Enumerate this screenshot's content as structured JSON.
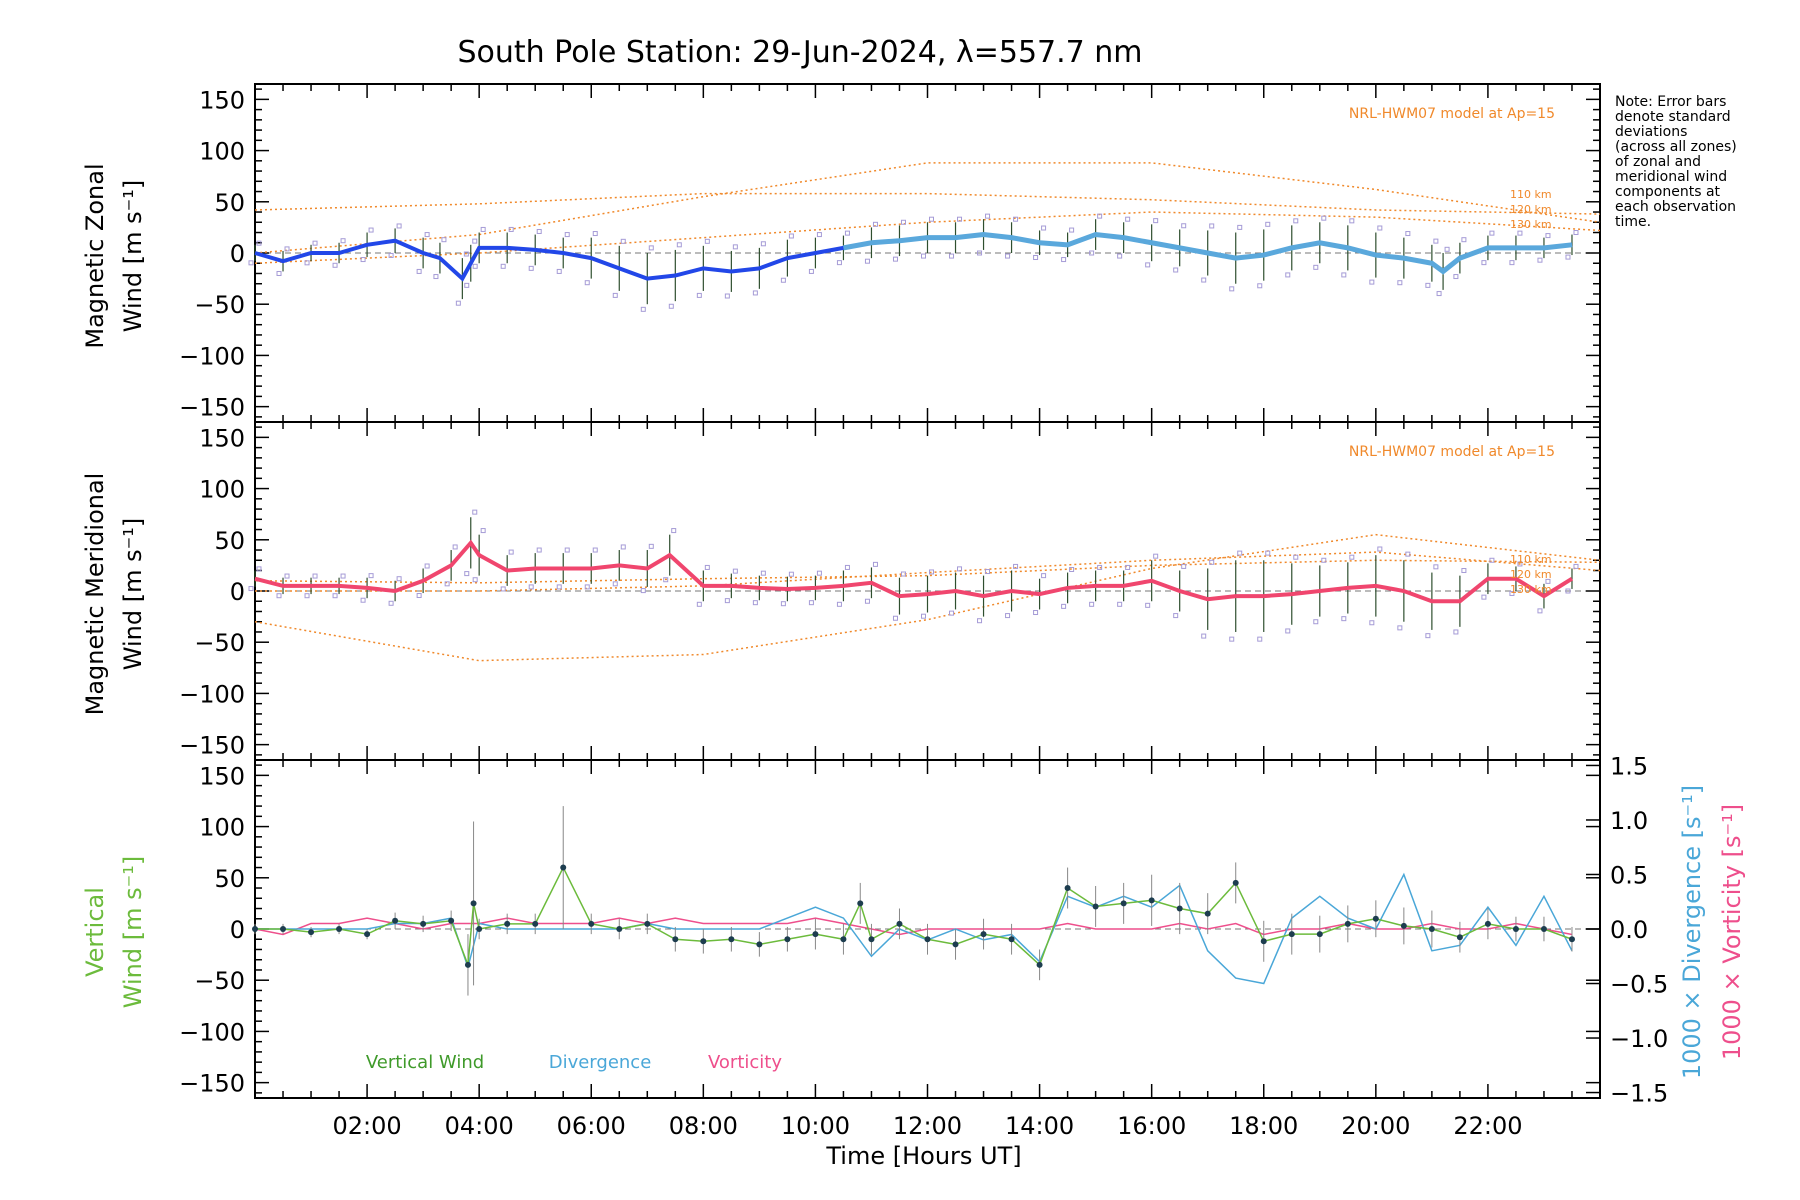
{
  "title": "South Pole Station: 29-Jun-2024, λ=557.7 nm",
  "note": [
    "Note: Error bars",
    "denote standard",
    "deviations",
    "(across all zones)",
    "of zonal and",
    "meridional wind",
    "components at",
    "each observation",
    "time."
  ],
  "model_label": "NRL-HWM07 model at Ap=15",
  "altitude_labels": [
    "110 km",
    "120 km",
    "130 km"
  ],
  "xlabel": "Time [Hours UT]",
  "xticks": [
    "02:00",
    "04:00",
    "06:00",
    "08:00",
    "10:00",
    "12:00",
    "14:00",
    "16:00",
    "18:00",
    "20:00",
    "22:00"
  ],
  "yticks": [
    "150",
    "100",
    "50",
    "0",
    "−50",
    "−100",
    "−150"
  ],
  "rticks": [
    "1.5",
    "1.0",
    "0.5",
    "0.0",
    "−0.5",
    "−1.0",
    "−1.5"
  ],
  "colors": {
    "zonal": "#2247e8",
    "zonal_light": "#5aa8dc",
    "meridional": "#f0466e",
    "vertical": "#6cbb3c",
    "divergence": "#4aa7d8",
    "vorticity": "#ee4f8c",
    "model": "#f0892b",
    "zones": "#a59bd6"
  },
  "chart_data": [
    {
      "type": "line",
      "panel": "zonal",
      "ylabel_line1": "Magnetic Zonal",
      "ylabel_line2": "Wind [m s⁻¹]",
      "ylim": [
        -165,
        165
      ],
      "xlim": [
        0,
        24
      ],
      "series": [
        {
          "name": "Zonal wind",
          "x": [
            0,
            0.5,
            1,
            1.5,
            2,
            2.5,
            3,
            3.3,
            3.7,
            3.85,
            4,
            4.5,
            5,
            5.5,
            6,
            6.5,
            7,
            7.5,
            8,
            8.5,
            9,
            9.5,
            10,
            10.5,
            11,
            11.5,
            12,
            12.5,
            13,
            13.5,
            14,
            14.5,
            15,
            15.5,
            16,
            16.5,
            17,
            17.5,
            18,
            18.5,
            19,
            19.5,
            20,
            20.5,
            21,
            21.2,
            21.5,
            22,
            22.5,
            23,
            23.5
          ],
          "y": [
            0,
            -8,
            0,
            0,
            8,
            12,
            0,
            -5,
            -25,
            -10,
            5,
            5,
            3,
            0,
            -5,
            -15,
            -25,
            -22,
            -15,
            -18,
            -15,
            -5,
            0,
            5,
            10,
            12,
            15,
            15,
            18,
            15,
            10,
            8,
            18,
            15,
            10,
            5,
            0,
            -5,
            -2,
            5,
            10,
            5,
            -2,
            -5,
            -10,
            -18,
            -5,
            5,
            5,
            5,
            8
          ],
          "err": [
            8,
            10,
            8,
            10,
            12,
            12,
            15,
            15,
            20,
            18,
            15,
            15,
            15,
            15,
            20,
            22,
            25,
            25,
            22,
            20,
            20,
            18,
            15,
            12,
            15,
            15,
            15,
            15,
            15,
            15,
            12,
            12,
            15,
            15,
            18,
            18,
            22,
            25,
            25,
            22,
            20,
            22,
            22,
            20,
            18,
            18,
            15,
            12,
            12,
            10,
            10
          ]
        },
        {
          "name": "NRL-HWM07 110 km",
          "x": [
            0,
            4,
            8,
            12,
            16,
            20,
            24
          ],
          "y": [
            42,
            48,
            58,
            58,
            52,
            42,
            38
          ]
        },
        {
          "name": "NRL-HWM07 120 km",
          "x": [
            0,
            4,
            8,
            12,
            16,
            20,
            24
          ],
          "y": [
            0,
            18,
            55,
            88,
            88,
            62,
            30
          ]
        },
        {
          "name": "NRL-HWM07 130 km",
          "x": [
            0,
            4,
            8,
            12,
            16,
            20,
            24
          ],
          "y": [
            -10,
            0,
            15,
            30,
            40,
            35,
            22
          ]
        }
      ]
    },
    {
      "type": "line",
      "panel": "meridional",
      "ylabel_line1": "Magnetic Meridional",
      "ylabel_line2": "Wind [m s⁻¹]",
      "ylim": [
        -165,
        165
      ],
      "xlim": [
        0,
        24
      ],
      "series": [
        {
          "name": "Meridional wind",
          "x": [
            0,
            0.5,
            1,
            1.5,
            2,
            2.5,
            3,
            3.5,
            3.85,
            4,
            4.5,
            5,
            5.5,
            6,
            6.5,
            7,
            7.4,
            8,
            8.5,
            9,
            9.5,
            10,
            10.5,
            11,
            11.5,
            12,
            12.5,
            13,
            13.5,
            14,
            14.5,
            15,
            15.5,
            16,
            16.5,
            17,
            17.5,
            18,
            18.5,
            19,
            19.5,
            20,
            20.5,
            21,
            21.5,
            22,
            22.5,
            23,
            23.5
          ],
          "y": [
            12,
            5,
            5,
            5,
            3,
            0,
            10,
            25,
            47,
            35,
            20,
            22,
            22,
            22,
            25,
            22,
            35,
            5,
            5,
            3,
            2,
            3,
            5,
            8,
            -5,
            -3,
            0,
            -5,
            0,
            -3,
            3,
            5,
            5,
            10,
            0,
            -8,
            -5,
            -5,
            -3,
            0,
            3,
            5,
            0,
            -10,
            -10,
            12,
            12,
            -5,
            12
          ],
          "err": [
            8,
            8,
            8,
            8,
            10,
            10,
            12,
            15,
            25,
            20,
            15,
            15,
            15,
            15,
            15,
            18,
            20,
            15,
            12,
            12,
            12,
            12,
            15,
            15,
            18,
            18,
            18,
            20,
            20,
            15,
            15,
            15,
            15,
            20,
            20,
            30,
            35,
            35,
            30,
            25,
            25,
            30,
            30,
            28,
            25,
            15,
            12,
            12,
            10
          ]
        },
        {
          "name": "NRL-HWM07 110 km",
          "x": [
            0,
            4,
            8,
            12,
            16,
            20,
            24
          ],
          "y": [
            10,
            8,
            12,
            15,
            25,
            30,
            28
          ]
        },
        {
          "name": "NRL-HWM07 120 km",
          "x": [
            0,
            4,
            8,
            12,
            16,
            20,
            24
          ],
          "y": [
            -30,
            -68,
            -62,
            -28,
            22,
            55,
            30
          ]
        },
        {
          "name": "NRL-HWM07 130 km",
          "x": [
            0,
            4,
            8,
            12,
            16,
            20,
            24
          ],
          "y": [
            0,
            0,
            5,
            18,
            30,
            38,
            20
          ]
        }
      ]
    },
    {
      "type": "line",
      "panel": "vertical",
      "ylabel_line1": "Vertical",
      "ylabel_line2": "Wind [m s⁻¹]",
      "ylabel_right1": "1000 × Divergence [s⁻¹]",
      "ylabel_right2": "1000 × Vorticity [s⁻¹]",
      "ylim": [
        -165,
        165
      ],
      "y2lim": [
        -1.55,
        1.55
      ],
      "xlim": [
        0,
        24
      ],
      "legend": [
        "Vertical Wind",
        "Divergence",
        "Vorticity"
      ],
      "series": [
        {
          "name": "Vertical Wind",
          "x": [
            0,
            0.5,
            1,
            1.5,
            2,
            2.5,
            3,
            3.5,
            3.8,
            3.9,
            4,
            4.5,
            5,
            5.5,
            6,
            6.5,
            7,
            7.5,
            8,
            8.5,
            9,
            9.5,
            10,
            10.5,
            10.8,
            11,
            11.5,
            12,
            12.5,
            13,
            13.5,
            14,
            14.5,
            15,
            15.5,
            16,
            16.5,
            17,
            17.5,
            18,
            18.5,
            19,
            19.5,
            20,
            20.5,
            21,
            21.5,
            22,
            22.5,
            23,
            23.5
          ],
          "y": [
            0,
            0,
            -3,
            0,
            -5,
            8,
            5,
            8,
            -35,
            25,
            0,
            5,
            5,
            60,
            5,
            0,
            5,
            -10,
            -12,
            -10,
            -15,
            -10,
            -5,
            -10,
            25,
            -10,
            5,
            -10,
            -15,
            -5,
            -10,
            -35,
            40,
            22,
            25,
            28,
            20,
            15,
            45,
            -12,
            -5,
            -5,
            5,
            10,
            3,
            0,
            -8,
            5,
            0,
            0,
            -10
          ],
          "err": [
            5,
            5,
            5,
            5,
            5,
            8,
            8,
            10,
            30,
            80,
            10,
            10,
            10,
            60,
            10,
            10,
            10,
            12,
            12,
            12,
            12,
            12,
            15,
            15,
            20,
            15,
            15,
            15,
            15,
            15,
            15,
            15,
            20,
            20,
            20,
            25,
            25,
            20,
            20,
            20,
            20,
            18,
            18,
            18,
            18,
            18,
            15,
            15,
            12,
            12,
            12
          ]
        },
        {
          "name": "Divergence",
          "x": [
            0,
            0.5,
            1,
            1.5,
            2,
            2.5,
            3,
            3.5,
            3.8,
            4,
            4.5,
            5,
            5.5,
            6,
            6.5,
            7,
            7.5,
            8,
            8.5,
            9,
            9.5,
            10,
            10.5,
            11,
            11.5,
            12,
            12.5,
            13,
            13.5,
            14,
            14.5,
            15,
            15.5,
            16,
            16.5,
            17,
            17.5,
            18,
            18.5,
            19,
            19.5,
            20,
            20.5,
            21,
            21.5,
            22,
            22.5,
            23,
            23.5
          ],
          "y": [
            0.0,
            0.0,
            0.0,
            0.0,
            0.0,
            0.05,
            0.05,
            0.1,
            -0.35,
            0.05,
            0.0,
            0.0,
            0.0,
            0.0,
            0.0,
            0.05,
            0.0,
            0.0,
            0.0,
            0.0,
            0.1,
            0.2,
            0.1,
            -0.25,
            0.0,
            -0.1,
            0.0,
            -0.1,
            -0.05,
            -0.3,
            0.3,
            0.2,
            0.3,
            0.2,
            0.4,
            -0.2,
            -0.45,
            -0.5,
            0.1,
            0.3,
            0.1,
            0.0,
            0.5,
            -0.2,
            -0.15,
            0.2,
            -0.15,
            0.3,
            -0.2
          ],
          "err": []
        },
        {
          "name": "Vorticity",
          "x": [
            0,
            0.5,
            1,
            1.5,
            2,
            2.5,
            3,
            3.5,
            4,
            4.5,
            5,
            5.5,
            6,
            6.5,
            7,
            7.5,
            8,
            8.5,
            9,
            9.5,
            10,
            10.5,
            11,
            11.5,
            12,
            12.5,
            13,
            13.5,
            14,
            14.5,
            15,
            15.5,
            16,
            16.5,
            17,
            17.5,
            18,
            18.5,
            19,
            19.5,
            20,
            20.5,
            21,
            21.5,
            22,
            22.5,
            23,
            23.5
          ],
          "y": [
            0.0,
            -0.05,
            0.05,
            0.05,
            0.1,
            0.05,
            0.0,
            0.05,
            0.05,
            0.1,
            0.05,
            0.05,
            0.05,
            0.1,
            0.05,
            0.1,
            0.05,
            0.05,
            0.05,
            0.05,
            0.1,
            0.05,
            0.0,
            -0.05,
            0.0,
            0.0,
            0.0,
            0.0,
            0.0,
            0.05,
            0.0,
            0.0,
            0.0,
            0.05,
            0.0,
            0.05,
            -0.05,
            0.0,
            0.0,
            0.05,
            0.0,
            0.0,
            0.05,
            0.0,
            0.0,
            0.05,
            0.0,
            -0.05
          ],
          "err": []
        }
      ]
    }
  ]
}
